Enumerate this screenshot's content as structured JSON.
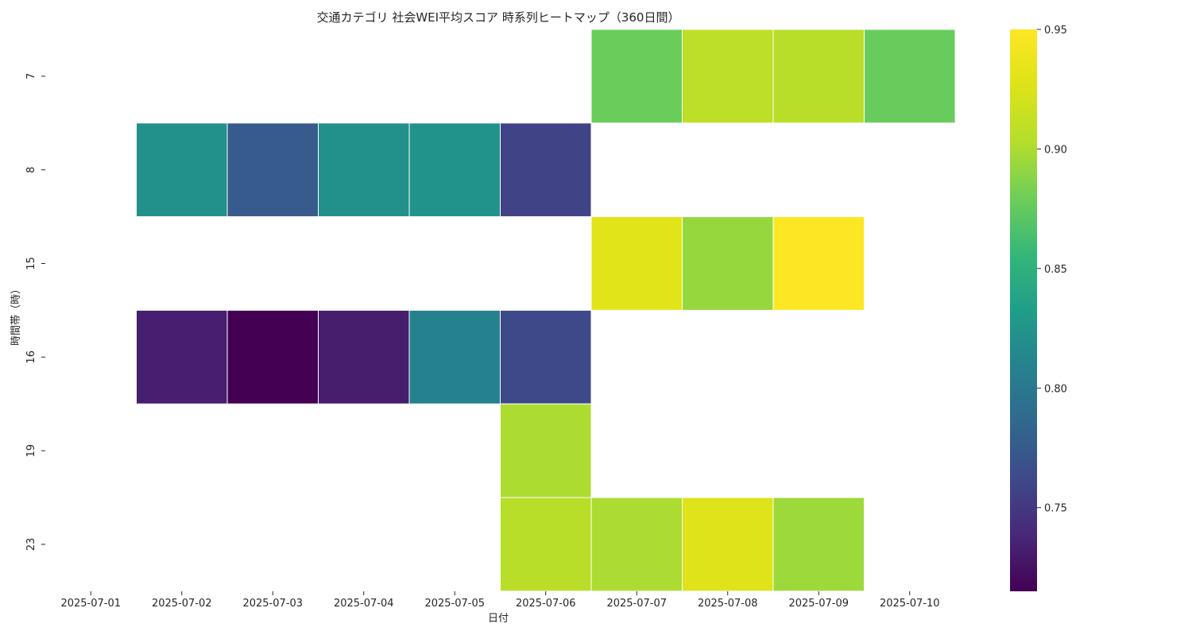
{
  "chart_data": {
    "type": "heatmap",
    "title": "交通カテゴリ 社会WEI平均スコア 時系列ヒートマップ（360日間）",
    "xlabel": "日付",
    "ylabel": "時間帯（時）",
    "x_categories": [
      "2025-07-01",
      "2025-07-02",
      "2025-07-03",
      "2025-07-04",
      "2025-07-05",
      "2025-07-06",
      "2025-07-07",
      "2025-07-08",
      "2025-07-09",
      "2025-07-10"
    ],
    "y_categories": [
      "7",
      "8",
      "15",
      "16",
      "19",
      "23"
    ],
    "values": [
      [
        null,
        null,
        null,
        null,
        null,
        null,
        0.878,
        0.908,
        0.905,
        0.877
      ],
      [
        null,
        0.822,
        0.776,
        0.822,
        0.823,
        0.758,
        null,
        null,
        null,
        null
      ],
      [
        null,
        null,
        null,
        null,
        null,
        null,
        0.93,
        0.893,
        0.95,
        null
      ],
      [
        null,
        0.733,
        0.715,
        0.732,
        0.808,
        0.762,
        null,
        null,
        null,
        null
      ],
      [
        null,
        null,
        null,
        null,
        null,
        0.9,
        null,
        null,
        null,
        null
      ],
      [
        null,
        null,
        null,
        null,
        null,
        0.905,
        0.9,
        0.928,
        0.895,
        null
      ]
    ],
    "colormap": "viridis",
    "color_range": [
      0.715,
      0.95
    ],
    "colorbar_ticks": [
      "0.75",
      "0.80",
      "0.85",
      "0.90",
      "0.95"
    ],
    "colorbar_tick_values": [
      0.75,
      0.8,
      0.85,
      0.9,
      0.95
    ],
    "grid": false,
    "legend": "colorbar-right"
  }
}
